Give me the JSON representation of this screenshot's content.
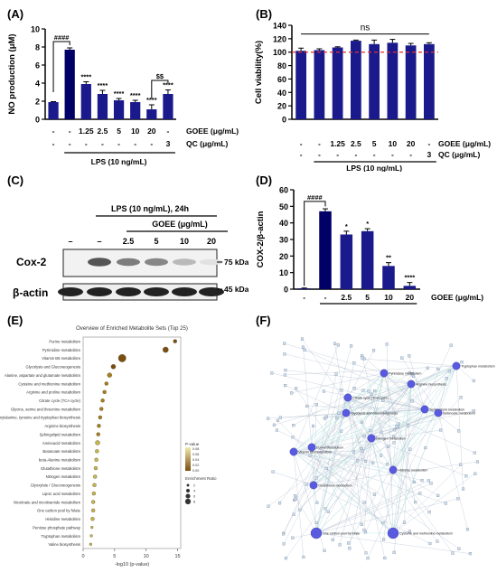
{
  "panels": {
    "A": "(A)",
    "B": "(B)",
    "C": "(C)",
    "D": "(D)",
    "E": "(E)",
    "F": "(F)"
  },
  "colors": {
    "bar": "#1a1a8c",
    "dark_bar": "#000066",
    "dashed_line": "#e0312e",
    "network_node": "#5a5ae0",
    "dot_fill": "#8a6d12"
  },
  "chart_data": [
    {
      "id": "A",
      "type": "bar",
      "ylabel": "NO production (μM)",
      "ylim": [
        0,
        10
      ],
      "yticks": [
        0,
        2,
        4,
        6,
        8,
        10
      ],
      "values": [
        1.9,
        7.7,
        3.9,
        2.8,
        2.1,
        1.9,
        1.1,
        2.8
      ],
      "errors": [
        0.05,
        0.2,
        0.25,
        0.4,
        0.2,
        0.2,
        0.5,
        0.45
      ],
      "sig": [
        "",
        "####",
        "****",
        "****",
        "****",
        "****",
        "****",
        "****"
      ],
      "row_labels": [
        "GOEE (μg/mL)",
        "QC (μg/mL)"
      ],
      "goee": [
        "-",
        "-",
        "1.25",
        "2.5",
        "5",
        "10",
        "20",
        "-"
      ],
      "qc": [
        "-",
        "-",
        "-",
        "-",
        "-",
        "-",
        "-",
        "3"
      ],
      "xlabel": "LPS (10 ng/mL)",
      "bracket_labels": [
        "####",
        "$$"
      ]
    },
    {
      "id": "B",
      "type": "bar",
      "ylabel": "Cell viability(%)",
      "ylim": [
        0,
        140
      ],
      "yticks": [
        0,
        20,
        40,
        60,
        80,
        100,
        120,
        140
      ],
      "values": [
        102,
        103,
        107,
        117,
        112,
        114,
        110,
        112
      ],
      "errors": [
        4,
        2,
        1,
        1,
        6,
        5,
        3,
        2
      ],
      "ns": "ns",
      "reference_line": 100,
      "row_labels": [
        "GOEE (μg/mL)",
        "QC (μg/mL)"
      ],
      "goee": [
        "-",
        "-",
        "1.25",
        "2.5",
        "5",
        "10",
        "20",
        "-"
      ],
      "qc": [
        "-",
        "-",
        "-",
        "-",
        "-",
        "-",
        "-",
        "3"
      ],
      "xlabel": "LPS (10 ng/mL)"
    },
    {
      "id": "D",
      "type": "bar",
      "ylabel": "COX-2/β-actin",
      "ylim": [
        0,
        60
      ],
      "yticks": [
        0,
        10,
        20,
        30,
        40,
        50,
        60
      ],
      "values": [
        0.5,
        47,
        33,
        35,
        14,
        2
      ],
      "errors": [
        0.2,
        1.5,
        2,
        1.5,
        2,
        2
      ],
      "sig": [
        "",
        "####",
        "*",
        "*",
        "**",
        "****"
      ],
      "goee_label": "GOEE (μg/mL)",
      "goee": [
        "-",
        "-",
        "2.5",
        "5",
        "10",
        "20"
      ],
      "xlabel": "LPS (10 ng/mL)"
    },
    {
      "id": "E",
      "type": "scatter",
      "title": "Overview of Enriched Metabolite Sets (Top 25)",
      "xlabel": "-log10 (p-value)",
      "xticks": [
        0,
        5,
        10,
        15
      ],
      "xlim": [
        0,
        15.5
      ],
      "categories": [
        "Purine metabolism",
        "Pyrimidine metabolism",
        "Vitamin B6 metabolism",
        "Glycolysis and Gluconeogenesis",
        "Alanine, aspartate and glutamate metabolism",
        "Cysteine and methionine metabolism",
        "Arginine and proline metabolism",
        "Citrate cycle (TCA cycle)",
        "Glycine, serine and threonine metabolism",
        "Phenylalanine, tyrosine and tryptophan biosynthesis",
        "Arginine biosynthesis",
        "Sphingolipid metabolism",
        "Aminoacid metabolism",
        "Butanoate metabolism",
        "beta-Alanine metabolism",
        "Glutathione metabolism",
        "Nitrogen metabolism",
        "Glyoxylate / Gluconeogenesis",
        "Lipoic acid metabolism",
        "Nicotinate and nicotinamide metabolism",
        "One carbon pool by folate",
        "Histidine metabolism",
        "Pentose phosphate pathway",
        "Tryptophan metabolism",
        "Valine biosynthesis"
      ],
      "values": [
        14.6,
        13.1,
        6.2,
        4.8,
        4.2,
        3.7,
        3.4,
        3.1,
        2.9,
        2.7,
        2.5,
        2.4,
        2.3,
        2.2,
        2.1,
        2.0,
        1.9,
        1.8,
        1.7,
        1.6,
        1.6,
        1.5,
        1.4,
        1.3,
        1.2
      ],
      "ratio_sizes": [
        2,
        4,
        6,
        3,
        3,
        2,
        2,
        2,
        2,
        2,
        2,
        2,
        3,
        2,
        2,
        2,
        2,
        2,
        2,
        2,
        2,
        2,
        1,
        1,
        1
      ],
      "legend_pvalue_title": "P-value",
      "legend_pvalue_ticks": [
        "0.08",
        "0.06",
        "0.04",
        "0.02",
        "0.00"
      ],
      "legend_ratio_title": "Enrichment Ratio",
      "legend_ratio_ticks": [
        "2",
        "4",
        "6",
        "8"
      ]
    }
  ],
  "blot": {
    "lps_header": "LPS (10 ng/mL), 24h",
    "goee_header": "GOEE (μg/mL)",
    "lanes": [
      "–",
      "–",
      "2.5",
      "5",
      "10",
      "20"
    ],
    "cox2_label": "Cox-2",
    "actin_label": "β-actin",
    "cox2_kda": "75 kDa",
    "actin_kda": "45 kDa",
    "cox2_intensity": [
      0.0,
      0.85,
      0.65,
      0.6,
      0.35,
      0.15
    ]
  },
  "network": {
    "hubs": [
      "Purine metabolism",
      "Pyrimidine metabolism",
      "Vitamin B6 metabolism",
      "Glycolysis and Gluconeogenesis",
      "Citrate cycle (TCA cycle)",
      "Arginine biosynthesis",
      "Sphingolipid metabolism",
      "Glutathione metabolism",
      "Nitrogen metabolism",
      "Histidine metabolism",
      "Butanoate metabolism",
      "One carbon pool by folate",
      "Cysteine and methionine metabolism",
      "Tryptophan metabolism"
    ]
  }
}
